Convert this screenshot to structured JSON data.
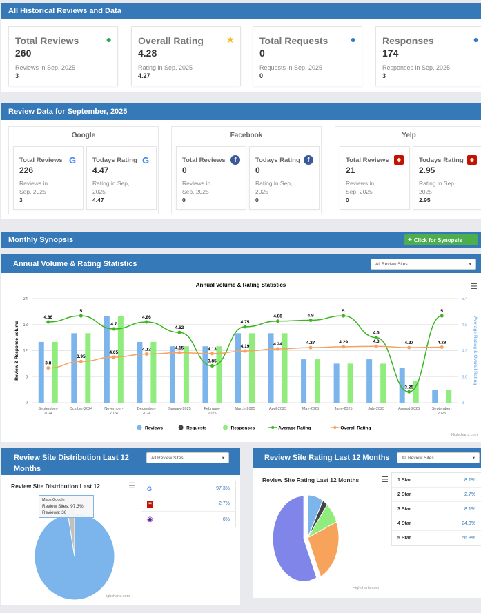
{
  "historical": {
    "title": "All Historical Reviews and Data",
    "cards": [
      {
        "title": "Total Reviews",
        "value": "260",
        "sub": "Reviews in Sep, 2025",
        "subval": "3",
        "icon": "comment-icon",
        "color": "#2ea84a"
      },
      {
        "title": "Overall Rating",
        "value": "4.28",
        "sub": "Rating in Sep, 2025",
        "subval": "4.27",
        "icon": "star-icon",
        "color": "#f5b914"
      },
      {
        "title": "Total Requests",
        "value": "0",
        "sub": "Requests in Sep, 2025",
        "subval": "0",
        "icon": "comment-icon",
        "color": "#2f7bc0"
      },
      {
        "title": "Responses",
        "value": "174",
        "sub": "Responses in Sep, 2025",
        "subval": "3",
        "icon": "comments-icon",
        "color": "#2f7bc0"
      }
    ]
  },
  "monthly": {
    "title": "Review Data for September, 2025",
    "groups": [
      {
        "name": "Google",
        "icon": "google-icon",
        "cards": [
          {
            "title": "Total Reviews",
            "value": "226",
            "sub": "Reviews in Sep, 2025",
            "subval": "3"
          },
          {
            "title": "Todays Rating",
            "value": "4.47",
            "sub": "Rating in Sep, 2025",
            "subval": "4.47"
          }
        ]
      },
      {
        "name": "Facebook",
        "icon": "facebook-icon",
        "cards": [
          {
            "title": "Total Reviews",
            "value": "0",
            "sub": "Reviews in Sep, 2025",
            "subval": "0"
          },
          {
            "title": "Todays Rating",
            "value": "0",
            "sub": "Rating in Sep, 2025",
            "subval": "0"
          }
        ]
      },
      {
        "name": "Yelp",
        "icon": "yelp-icon",
        "cards": [
          {
            "title": "Total Reviews",
            "value": "21",
            "sub": "Reviews in Sep, 2025",
            "subval": "0"
          },
          {
            "title": "Todays Rating",
            "value": "2.95",
            "sub": "Rating in Sep, 2025",
            "subval": "2.95"
          }
        ]
      }
    ]
  },
  "synopsis": {
    "title": "Monthly Synopsis",
    "button": "Click for Synopsis"
  },
  "annual": {
    "title": "Annual Volume & Rating Statistics",
    "select": "All Review Sites"
  },
  "credit": "Highcharts.com",
  "chart_data": [
    {
      "type": "bar+line",
      "title": "Annual Volume & Rating Statistics",
      "ylabel": "Review & Response Volume",
      "y2label": "Average Rating & Overall Rating",
      "ylim": [
        0,
        24
      ],
      "yticks": [
        0,
        6,
        12,
        18,
        24
      ],
      "y2lim": [
        3,
        5.4
      ],
      "y2ticks": [
        "3",
        "3.6",
        "4.2",
        "4.8",
        "5.4"
      ],
      "categories": [
        "September-2024",
        "October-2024",
        "November-2024",
        "December-2024",
        "January-2025",
        "February-2025",
        "March-2025",
        "April-2025",
        "May-2025",
        "June-2025",
        "July-2025",
        "August-2025",
        "September-2025"
      ],
      "series": [
        {
          "name": "Reviews",
          "type": "bar",
          "color": "#7cb5ec",
          "values": [
            14,
            16,
            20,
            14,
            13,
            13,
            16,
            16,
            10,
            9,
            10,
            8,
            3
          ]
        },
        {
          "name": "Requests",
          "type": "bar",
          "color": "#434348",
          "values": [
            0,
            0,
            0,
            0,
            0,
            0,
            0,
            0,
            0,
            0,
            0,
            0,
            0
          ]
        },
        {
          "name": "Responses",
          "type": "bar",
          "color": "#90ed7d",
          "values": [
            14,
            16,
            20,
            14,
            13,
            13,
            16,
            16,
            10,
            9,
            9,
            5,
            3
          ]
        },
        {
          "name": "Average Rating",
          "type": "line",
          "axis": "right",
          "color": "#3cb521",
          "values": [
            4.86,
            5,
            4.7,
            4.86,
            4.62,
            3.85,
            4.75,
            4.88,
            4.9,
            5,
            4.5,
            3.25,
            5
          ]
        },
        {
          "name": "Overall Rating",
          "type": "line",
          "axis": "right",
          "color": "#f4a261",
          "values": [
            3.8,
            3.95,
            4.05,
            4.12,
            4.15,
            4.13,
            4.19,
            4.24,
            4.27,
            4.29,
            4.3,
            4.27,
            4.28
          ]
        }
      ],
      "legend": "bottom",
      "grid": true
    },
    {
      "type": "pie",
      "panel_title": "Review Site Distribution Last 12 Months",
      "title": "Review Site Distribution Last 12",
      "select": "All Review Sites",
      "slices": [
        {
          "name": "Maps.Google",
          "value": 97.3,
          "label": "97.3%",
          "icon": "google-icon",
          "color": "#7cb5ec"
        },
        {
          "name": "Yelp",
          "value": 2.7,
          "label": "2.7%",
          "icon": "yelp-icon",
          "color": "#c0c0c0"
        },
        {
          "name": "Other",
          "value": 0,
          "label": "0%",
          "icon": "tripadvisor-icon",
          "color": "#5b1e96"
        }
      ],
      "tooltip": {
        "name": "Maps.Google",
        "line1": "Review Sites: 97.3%",
        "line2": "Reviews: 36"
      }
    },
    {
      "type": "pie",
      "panel_title": "Review Site Rating Last 12 Months",
      "title": "Review Site Rating Last 12 Months",
      "select": "All Review Sites",
      "slices": [
        {
          "name": "1 Star",
          "value": 8.1,
          "label": "8.1%",
          "color": "#7cb5ec"
        },
        {
          "name": "2 Star",
          "value": 2.7,
          "label": "2.7%",
          "color": "#434348"
        },
        {
          "name": "3 Star",
          "value": 8.1,
          "label": "8.1%",
          "color": "#90ed7d"
        },
        {
          "name": "4 Star",
          "value": 24.3,
          "label": "24.3%",
          "color": "#f7a35c"
        },
        {
          "name": "5 Star",
          "value": 56.8,
          "label": "56.8%",
          "color": "#8085e9"
        }
      ]
    }
  ]
}
